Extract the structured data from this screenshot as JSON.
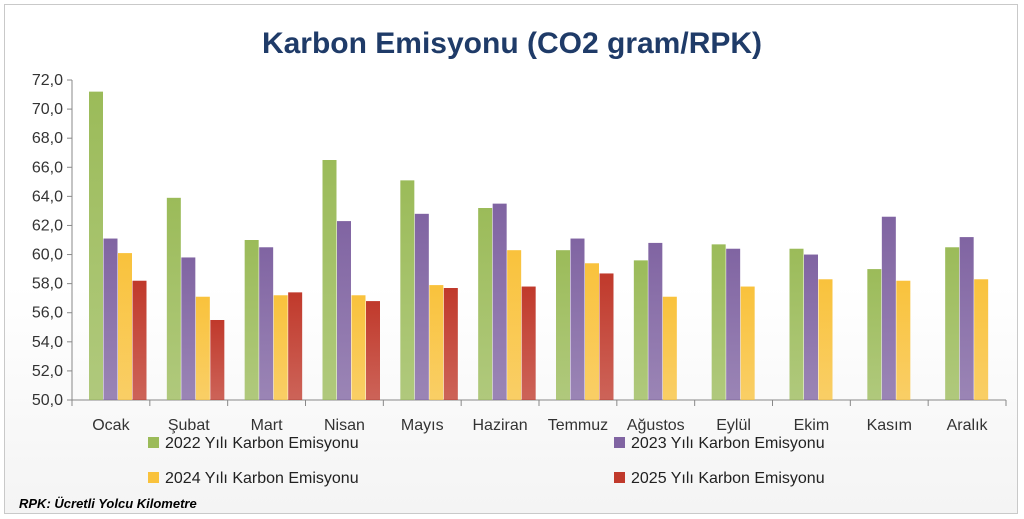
{
  "chart_data": {
    "type": "bar",
    "title": "Karbon Emisyonu (CO2 gram/RPK)",
    "xlabel": "",
    "ylabel": "",
    "ylim": [
      50,
      72
    ],
    "yticks": [
      "72,0",
      "70,0",
      "68,0",
      "66,0",
      "64,0",
      "62,0",
      "60,0",
      "58,0",
      "56,0",
      "54,0",
      "52,0",
      "50,0"
    ],
    "categories": [
      "Ocak",
      "Şubat",
      "Mart",
      "Nisan",
      "Mayıs",
      "Haziran",
      "Temmuz",
      "Ağustos",
      "Eylül",
      "Ekim",
      "Kasım",
      "Aralık"
    ],
    "series": [
      {
        "name": "2022 Yılı Karbon Emisyonu",
        "color": "#9bbb59",
        "values": [
          71.2,
          63.9,
          61.0,
          66.5,
          65.1,
          63.2,
          60.3,
          59.6,
          60.7,
          60.4,
          59.0,
          60.5
        ]
      },
      {
        "name": "2023 Yılı Karbon Emisyonu",
        "color": "#8064a2",
        "values": [
          61.1,
          59.8,
          60.5,
          62.3,
          62.8,
          63.5,
          61.1,
          60.8,
          60.4,
          60.0,
          62.6,
          61.2
        ]
      },
      {
        "name": "2024 Yılı Karbon Emisyonu",
        "color": "#f9c23c",
        "values": [
          60.1,
          57.1,
          57.2,
          57.2,
          57.9,
          60.3,
          59.4,
          57.1,
          57.8,
          58.3,
          58.2,
          58.3
        ]
      },
      {
        "name": "2025 Yılı Karbon Emisyonu",
        "color": "#c0392b",
        "values": [
          58.2,
          55.5,
          57.4,
          56.8,
          57.7,
          57.8,
          58.7,
          null,
          null,
          null,
          null,
          null
        ]
      }
    ],
    "grid": false,
    "legend_position": "bottom"
  },
  "footnote": "RPK: Ücretli Yolcu Kilometre"
}
